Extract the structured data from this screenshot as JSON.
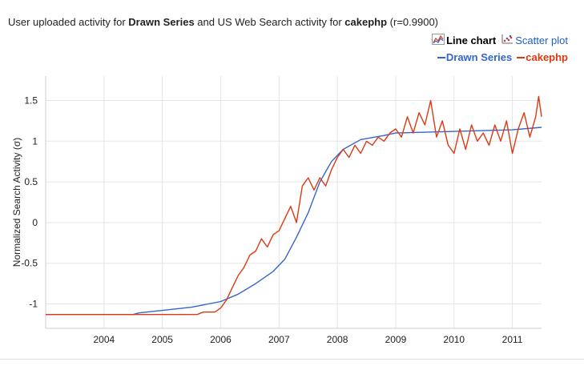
{
  "header": {
    "title_prefix": "User uploaded activity for ",
    "series_a": "Drawn Series",
    "title_mid": " and US Web Search activity for ",
    "series_b": "cakephp",
    "title_suffix": " (r=0.9900)"
  },
  "toggles": {
    "line_label": "Line chart",
    "scatter_label": "Scatter plot"
  },
  "legend": [
    {
      "name": "Drawn Series",
      "color": "#3366cc"
    },
    {
      "name": "cakephp",
      "color": "#dc3912"
    }
  ],
  "chart_data": {
    "type": "line",
    "ylabel": "Normalized Search Activity (σ)",
    "xlabel": "",
    "xlim": [
      2003.0,
      2011.5
    ],
    "ylim": [
      -1.3,
      1.8
    ],
    "x_ticks": [
      2004,
      2005,
      2006,
      2007,
      2008,
      2009,
      2010,
      2011
    ],
    "y_ticks": [
      -1,
      -0.5,
      0,
      0.5,
      1,
      1.5
    ],
    "y_tick_labels": [
      "-1",
      "-0.5",
      "0",
      "0.5",
      "1",
      "1.5"
    ],
    "grid": true,
    "legend_position": "top-right",
    "series": [
      {
        "name": "Drawn Series",
        "color": "#3366cc",
        "x": [
          2003.0,
          2004.5,
          2004.6,
          2005.0,
          2005.5,
          2006.0,
          2006.3,
          2006.6,
          2006.9,
          2007.1,
          2007.3,
          2007.5,
          2007.7,
          2007.9,
          2008.1,
          2008.4,
          2008.8,
          2009.0,
          2009.5,
          2010.0,
          2010.5,
          2011.0,
          2011.5
        ],
        "y": [
          -1.13,
          -1.13,
          -1.11,
          -1.08,
          -1.04,
          -0.97,
          -0.88,
          -0.75,
          -0.6,
          -0.45,
          -0.18,
          0.12,
          0.5,
          0.75,
          0.9,
          1.02,
          1.07,
          1.1,
          1.11,
          1.12,
          1.13,
          1.14,
          1.17
        ]
      },
      {
        "name": "cakephp",
        "color": "#dc3912",
        "x": [
          2003.0,
          2005.6,
          2005.7,
          2005.9,
          2006.0,
          2006.1,
          2006.2,
          2006.3,
          2006.4,
          2006.5,
          2006.6,
          2006.7,
          2006.8,
          2006.9,
          2007.0,
          2007.1,
          2007.2,
          2007.3,
          2007.4,
          2007.5,
          2007.6,
          2007.7,
          2007.8,
          2007.9,
          2008.0,
          2008.1,
          2008.2,
          2008.3,
          2008.4,
          2008.5,
          2008.6,
          2008.7,
          2008.8,
          2008.9,
          2009.0,
          2009.1,
          2009.2,
          2009.3,
          2009.4,
          2009.5,
          2009.6,
          2009.7,
          2009.8,
          2009.9,
          2010.0,
          2010.1,
          2010.2,
          2010.3,
          2010.4,
          2010.5,
          2010.6,
          2010.7,
          2010.8,
          2010.9,
          2011.0,
          2011.1,
          2011.2,
          2011.3,
          2011.4,
          2011.45,
          2011.5
        ],
        "y": [
          -1.13,
          -1.13,
          -1.1,
          -1.1,
          -1.05,
          -0.95,
          -0.8,
          -0.65,
          -0.55,
          -0.4,
          -0.35,
          -0.2,
          -0.3,
          -0.15,
          -0.1,
          0.05,
          0.2,
          0.0,
          0.45,
          0.55,
          0.4,
          0.55,
          0.45,
          0.65,
          0.8,
          0.9,
          0.8,
          0.95,
          0.85,
          1.0,
          0.95,
          1.05,
          1.0,
          1.1,
          1.15,
          1.05,
          1.3,
          1.1,
          1.35,
          1.2,
          1.5,
          1.05,
          1.25,
          0.95,
          0.85,
          1.15,
          0.9,
          1.2,
          1.0,
          1.1,
          0.95,
          1.2,
          1.0,
          1.25,
          0.85,
          1.15,
          1.35,
          1.05,
          1.3,
          1.55,
          1.3
        ]
      }
    ]
  }
}
